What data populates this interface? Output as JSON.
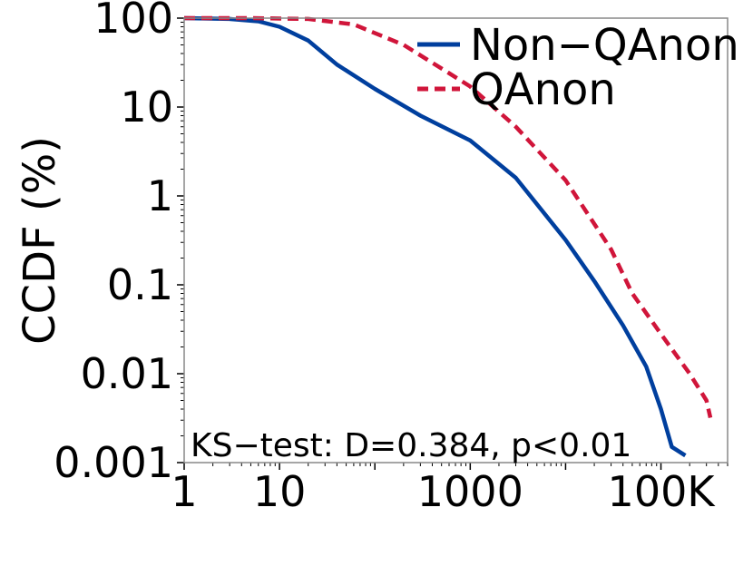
{
  "chart_data": {
    "type": "line",
    "title": "",
    "xlabel": "",
    "ylabel": "CCDF (%)",
    "x_scale": "log",
    "y_scale": "log",
    "xlim": [
      1,
      500000
    ],
    "ylim": [
      0.001,
      100
    ],
    "x_ticks": [
      {
        "value": 1,
        "label": "1"
      },
      {
        "value": 10,
        "label": "10"
      },
      {
        "value": 1000,
        "label": "1000"
      },
      {
        "value": 100000,
        "label": "100K"
      }
    ],
    "y_ticks": [
      {
        "value": 100,
        "label": "100"
      },
      {
        "value": 10,
        "label": "10"
      },
      {
        "value": 1,
        "label": "1"
      },
      {
        "value": 0.1,
        "label": "0.1"
      },
      {
        "value": 0.01,
        "label": "0.01"
      },
      {
        "value": 0.001,
        "label": "0.001"
      }
    ],
    "grid": false,
    "legend_position": "top-right",
    "annotation": "KS−test: D=0.384, p<0.01",
    "series": [
      {
        "name": "Non−QAnon",
        "color": "#003f9e",
        "style": "solid",
        "points": [
          [
            1,
            100
          ],
          [
            3,
            98
          ],
          [
            6,
            92
          ],
          [
            10,
            80
          ],
          [
            20,
            56
          ],
          [
            40,
            30
          ],
          [
            100,
            16
          ],
          [
            300,
            8
          ],
          [
            1000,
            4.2
          ],
          [
            3000,
            1.6
          ],
          [
            10000,
            0.32
          ],
          [
            20000,
            0.11
          ],
          [
            40000,
            0.035
          ],
          [
            70000,
            0.012
          ],
          [
            100000,
            0.004
          ],
          [
            130000,
            0.0015
          ],
          [
            180000,
            0.0012
          ]
        ]
      },
      {
        "name": "QAnon",
        "color": "#d0153a",
        "style": "dashed",
        "points": [
          [
            1,
            100
          ],
          [
            5,
            100
          ],
          [
            20,
            98
          ],
          [
            60,
            85
          ],
          [
            200,
            50
          ],
          [
            600,
            24
          ],
          [
            1000,
            17
          ],
          [
            3000,
            6
          ],
          [
            10000,
            1.5
          ],
          [
            30000,
            0.25
          ],
          [
            50000,
            0.08
          ],
          [
            100000,
            0.028
          ],
          [
            200000,
            0.01
          ],
          [
            300000,
            0.005
          ],
          [
            330000,
            0.0032
          ]
        ]
      }
    ]
  }
}
